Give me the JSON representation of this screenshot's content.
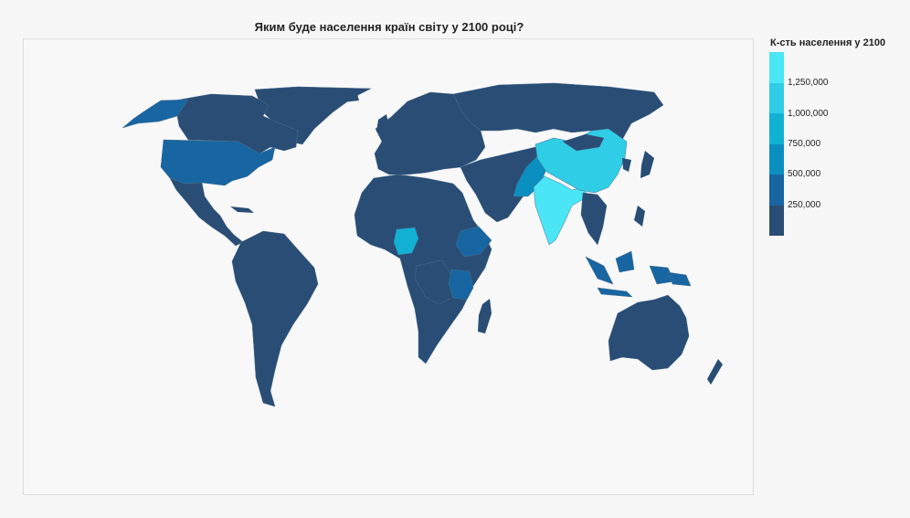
{
  "title": "Яким буде населення країн світу у 2100 році?",
  "legend": {
    "title": "К-сть населення у 2100",
    "ticks": [
      "1,250,000",
      "1,000,000",
      "750,000",
      "500,000",
      "250,000"
    ],
    "colors": [
      "#4ae6f5",
      "#30cde6",
      "#12b1d4",
      "#0a8fc0",
      "#1766a1",
      "#294d74"
    ]
  },
  "colors": {
    "land": "#294d74",
    "border": "#4e6f92",
    "ocean": "#f8f8f9"
  },
  "highlighted_countries": [
    {
      "name": "India",
      "color": "#4ae6f5"
    },
    {
      "name": "China",
      "color": "#30cde6"
    },
    {
      "name": "Nigeria",
      "color": "#12b1d4"
    },
    {
      "name": "Pakistan",
      "color": "#0a8fc0"
    },
    {
      "name": "USA",
      "color": "#1766a1"
    },
    {
      "name": "DR Congo",
      "color": "#1766a1"
    },
    {
      "name": "Tanzania",
      "color": "#1766a1"
    },
    {
      "name": "Ethiopia",
      "color": "#1766a1"
    },
    {
      "name": "Indonesia",
      "color": "#1766a1"
    }
  ]
}
